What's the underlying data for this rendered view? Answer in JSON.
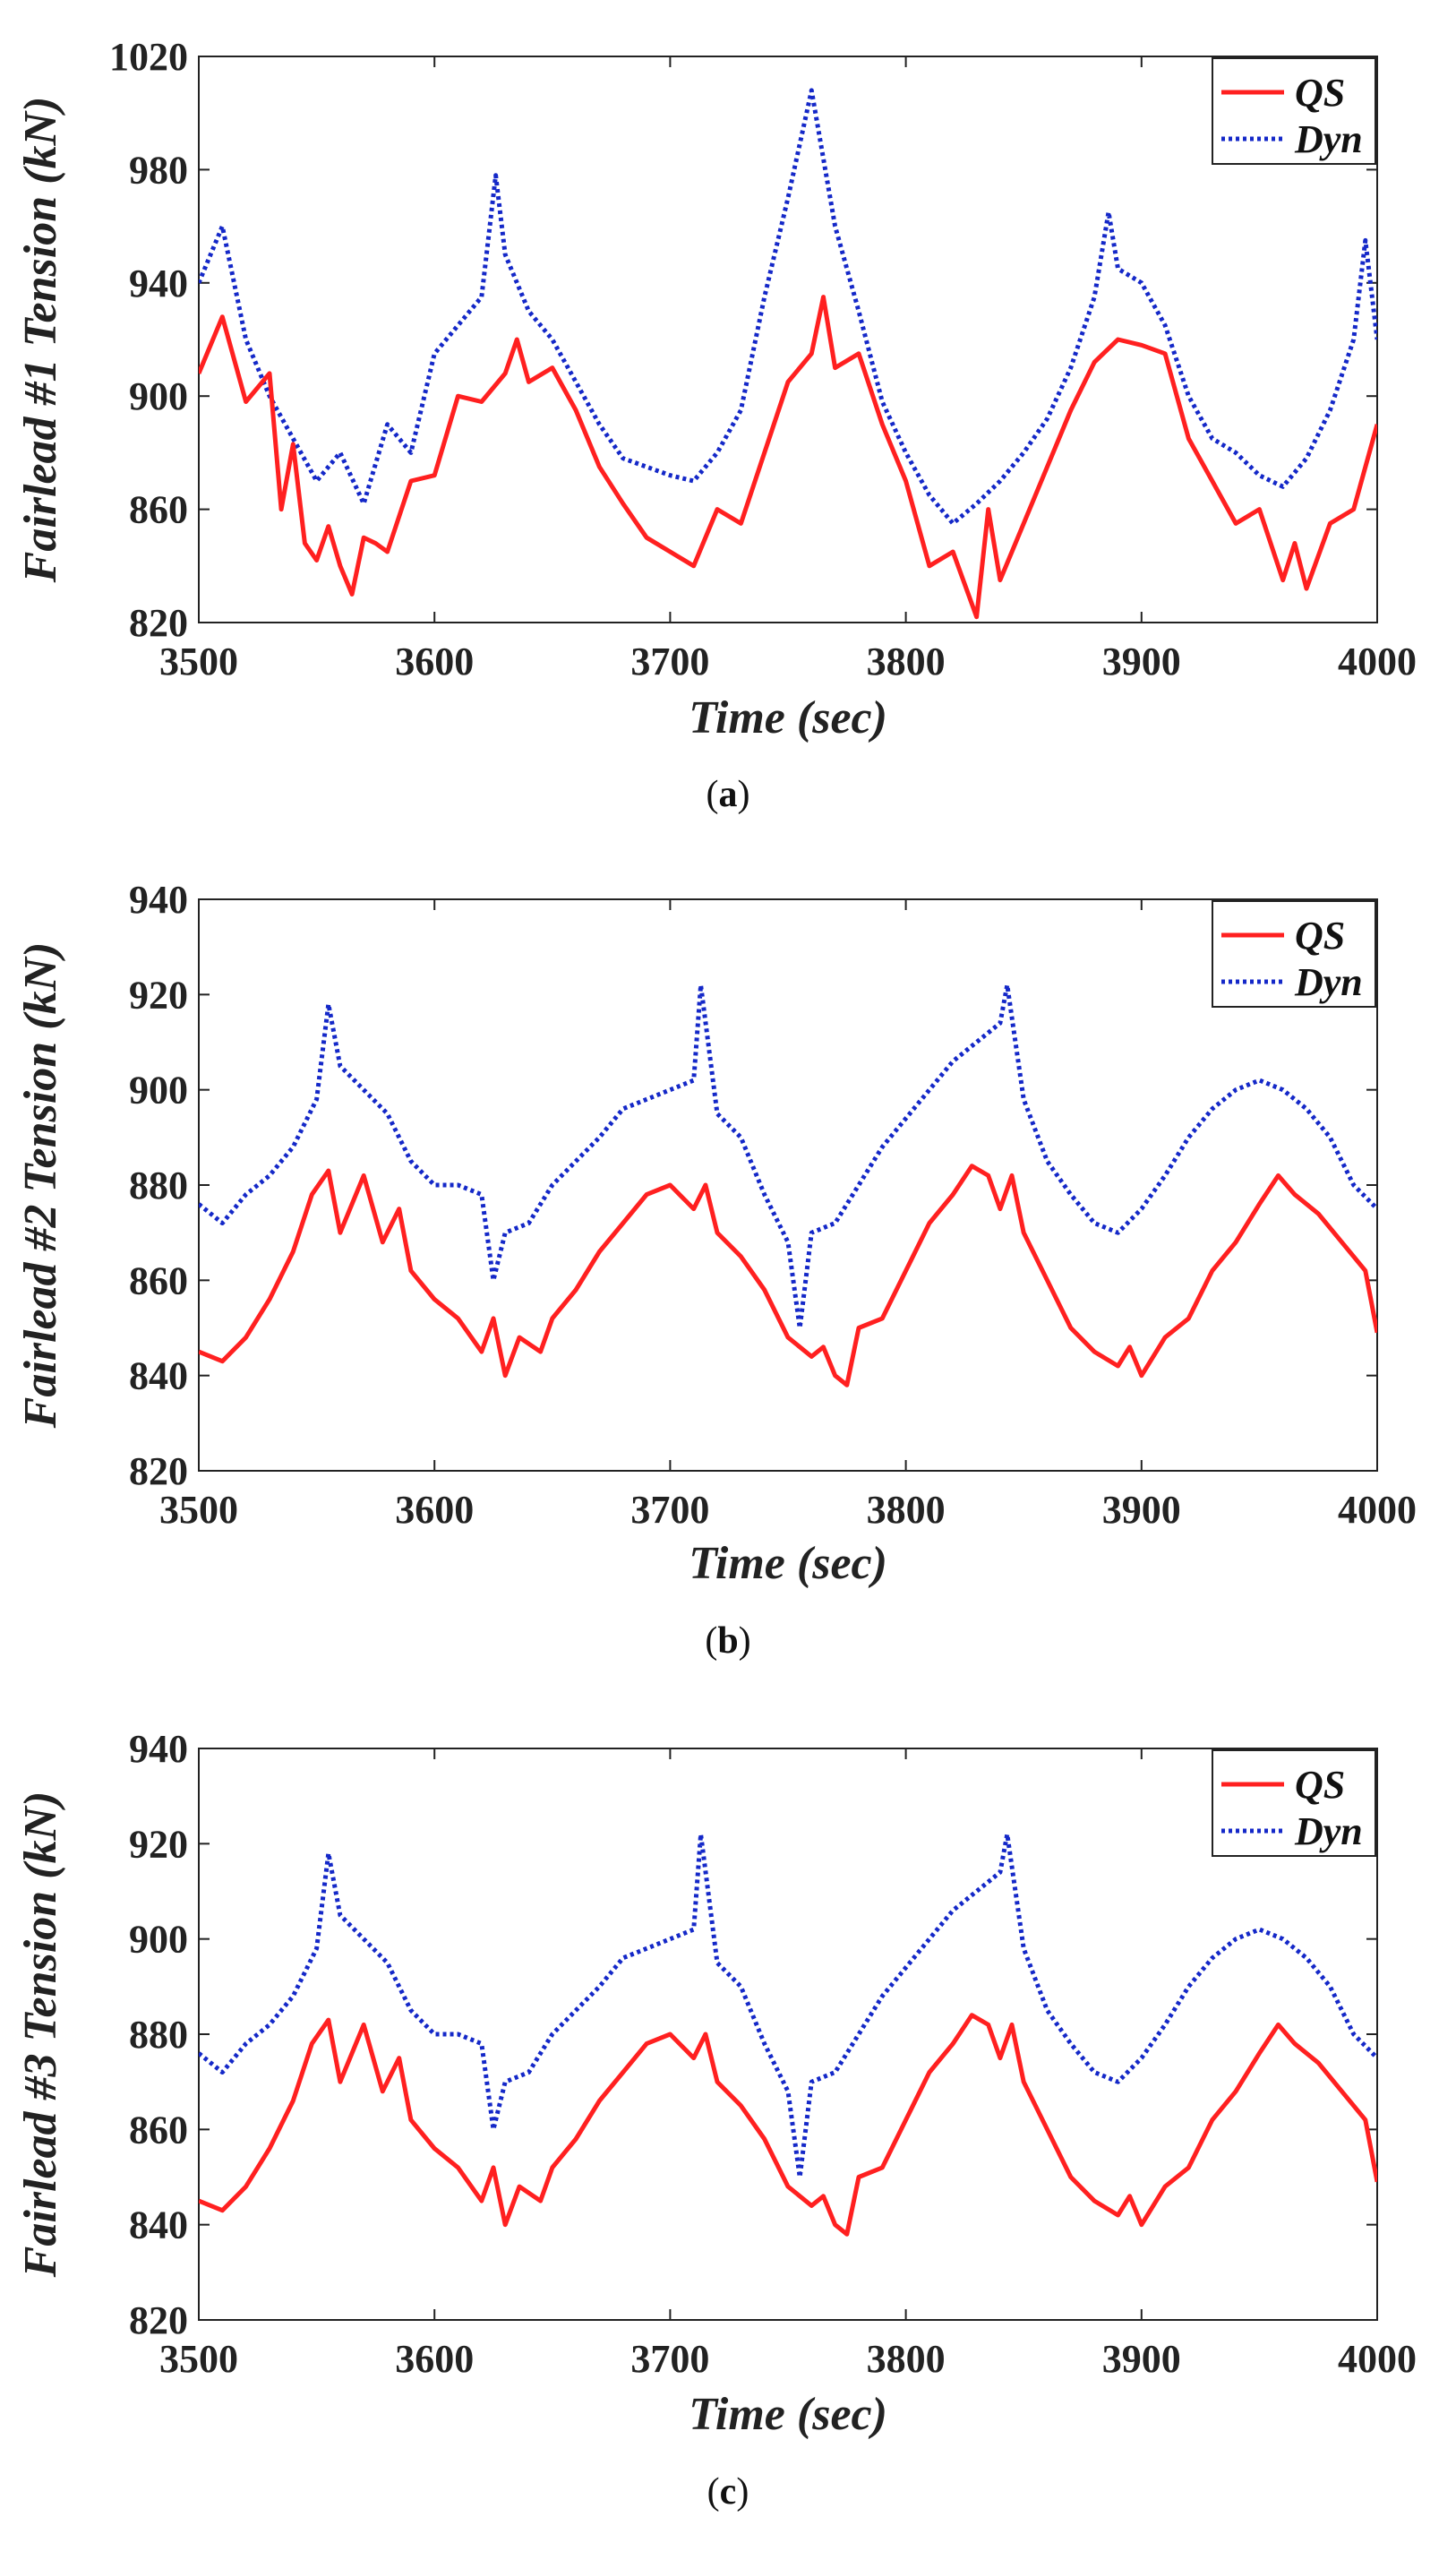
{
  "chart_data": [
    {
      "type": "line",
      "caption_letter": "a",
      "xlabel": "Time (sec)",
      "ylabel": "Fairlead #1 Tension (kN)",
      "xlim": [
        3500,
        4000
      ],
      "ylim": [
        820,
        1020
      ],
      "xticks": [
        3500,
        3600,
        3700,
        3800,
        3900,
        4000
      ],
      "yticks": [
        820,
        860,
        900,
        940,
        980,
        1020
      ],
      "legend_position": "top-right",
      "series": [
        {
          "name": "QS",
          "color": "#ff2020",
          "style": "solid",
          "x": [
            3500,
            3510,
            3520,
            3530,
            3535,
            3540,
            3545,
            3550,
            3555,
            3560,
            3565,
            3570,
            3575,
            3580,
            3590,
            3600,
            3610,
            3620,
            3630,
            3635,
            3640,
            3650,
            3660,
            3670,
            3680,
            3690,
            3700,
            3710,
            3720,
            3730,
            3740,
            3750,
            3760,
            3765,
            3770,
            3780,
            3790,
            3800,
            3810,
            3820,
            3830,
            3835,
            3840,
            3850,
            3860,
            3870,
            3880,
            3890,
            3900,
            3910,
            3920,
            3930,
            3940,
            3950,
            3960,
            3965,
            3970,
            3980,
            3990,
            4000
          ],
          "y": [
            908,
            928,
            898,
            908,
            860,
            883,
            848,
            842,
            854,
            840,
            830,
            850,
            848,
            845,
            870,
            872,
            900,
            898,
            908,
            920,
            905,
            910,
            895,
            875,
            862,
            850,
            845,
            840,
            860,
            855,
            880,
            905,
            915,
            935,
            910,
            915,
            890,
            870,
            840,
            845,
            822,
            860,
            835,
            855,
            875,
            895,
            912,
            920,
            918,
            915,
            885,
            870,
            855,
            860,
            835,
            848,
            832,
            855,
            860,
            890
          ]
        },
        {
          "name": "Dyn",
          "color": "#1428c8",
          "style": "dotted",
          "x": [
            3500,
            3510,
            3520,
            3530,
            3540,
            3550,
            3560,
            3570,
            3580,
            3590,
            3600,
            3610,
            3620,
            3626,
            3630,
            3640,
            3650,
            3660,
            3670,
            3680,
            3690,
            3700,
            3710,
            3720,
            3730,
            3740,
            3750,
            3760,
            3770,
            3780,
            3790,
            3800,
            3810,
            3820,
            3830,
            3840,
            3850,
            3860,
            3870,
            3880,
            3886,
            3890,
            3900,
            3910,
            3920,
            3930,
            3940,
            3950,
            3960,
            3970,
            3980,
            3990,
            3995,
            4000
          ],
          "y": [
            940,
            960,
            920,
            900,
            885,
            870,
            880,
            862,
            890,
            880,
            915,
            925,
            935,
            978,
            950,
            930,
            920,
            905,
            890,
            878,
            875,
            872,
            870,
            880,
            895,
            935,
            970,
            1008,
            960,
            930,
            898,
            880,
            865,
            855,
            862,
            870,
            880,
            892,
            910,
            935,
            965,
            945,
            940,
            925,
            900,
            885,
            880,
            872,
            868,
            878,
            895,
            920,
            955,
            920
          ]
        }
      ]
    },
    {
      "type": "line",
      "caption_letter": "b",
      "xlabel": "Time (sec)",
      "ylabel": "Fairlead #2 Tension (kN)",
      "xlim": [
        3500,
        4000
      ],
      "ylim": [
        820,
        940
      ],
      "xticks": [
        3500,
        3600,
        3700,
        3800,
        3900,
        4000
      ],
      "yticks": [
        820,
        840,
        860,
        880,
        900,
        920,
        940
      ],
      "legend_position": "top-right",
      "series": [
        {
          "name": "QS",
          "color": "#ff2020",
          "style": "solid",
          "x": [
            3500,
            3510,
            3520,
            3530,
            3540,
            3548,
            3555,
            3560,
            3570,
            3578,
            3585,
            3590,
            3600,
            3610,
            3620,
            3625,
            3630,
            3636,
            3645,
            3650,
            3660,
            3670,
            3680,
            3690,
            3700,
            3710,
            3715,
            3720,
            3730,
            3740,
            3750,
            3760,
            3765,
            3770,
            3775,
            3780,
            3790,
            3800,
            3810,
            3820,
            3828,
            3835,
            3840,
            3845,
            3850,
            3860,
            3870,
            3880,
            3890,
            3895,
            3900,
            3910,
            3920,
            3930,
            3940,
            3950,
            3958,
            3965,
            3975,
            3985,
            3995,
            4000
          ],
          "y": [
            845,
            843,
            848,
            856,
            866,
            878,
            883,
            870,
            882,
            868,
            875,
            862,
            856,
            852,
            845,
            852,
            840,
            848,
            845,
            852,
            858,
            866,
            872,
            878,
            880,
            875,
            880,
            870,
            865,
            858,
            848,
            844,
            846,
            840,
            838,
            850,
            852,
            862,
            872,
            878,
            884,
            882,
            875,
            882,
            870,
            860,
            850,
            845,
            842,
            846,
            840,
            848,
            852,
            862,
            868,
            876,
            882,
            878,
            874,
            868,
            862,
            849
          ]
        },
        {
          "name": "Dyn",
          "color": "#1428c8",
          "style": "dotted",
          "x": [
            3500,
            3510,
            3520,
            3530,
            3540,
            3550,
            3555,
            3560,
            3570,
            3580,
            3590,
            3600,
            3610,
            3620,
            3625,
            3630,
            3640,
            3650,
            3660,
            3670,
            3680,
            3690,
            3700,
            3710,
            3713,
            3720,
            3730,
            3740,
            3750,
            3755,
            3760,
            3770,
            3780,
            3790,
            3800,
            3810,
            3820,
            3830,
            3840,
            3843,
            3850,
            3860,
            3870,
            3880,
            3890,
            3900,
            3910,
            3920,
            3930,
            3940,
            3950,
            3960,
            3970,
            3980,
            3990,
            4000
          ],
          "y": [
            876,
            872,
            878,
            882,
            888,
            898,
            918,
            905,
            900,
            895,
            885,
            880,
            880,
            878,
            860,
            870,
            872,
            880,
            885,
            890,
            896,
            898,
            900,
            902,
            922,
            895,
            890,
            878,
            868,
            850,
            870,
            872,
            880,
            888,
            894,
            900,
            906,
            910,
            914,
            922,
            898,
            885,
            878,
            872,
            870,
            875,
            882,
            890,
            896,
            900,
            902,
            900,
            896,
            890,
            880,
            875
          ]
        }
      ]
    },
    {
      "type": "line",
      "caption_letter": "c",
      "xlabel": "Time (sec)",
      "ylabel": "Fairlead #3 Tension (kN)",
      "xlim": [
        3500,
        4000
      ],
      "ylim": [
        820,
        940
      ],
      "xticks": [
        3500,
        3600,
        3700,
        3800,
        3900,
        4000
      ],
      "yticks": [
        820,
        840,
        860,
        880,
        900,
        920,
        940
      ],
      "legend_position": "top-right",
      "series": [
        {
          "name": "QS",
          "color": "#ff2020",
          "style": "solid",
          "x": [
            3500,
            3510,
            3520,
            3530,
            3540,
            3548,
            3555,
            3560,
            3570,
            3578,
            3585,
            3590,
            3600,
            3610,
            3620,
            3625,
            3630,
            3636,
            3645,
            3650,
            3660,
            3670,
            3680,
            3690,
            3700,
            3710,
            3715,
            3720,
            3730,
            3740,
            3750,
            3760,
            3765,
            3770,
            3775,
            3780,
            3790,
            3800,
            3810,
            3820,
            3828,
            3835,
            3840,
            3845,
            3850,
            3860,
            3870,
            3880,
            3890,
            3895,
            3900,
            3910,
            3920,
            3930,
            3940,
            3950,
            3958,
            3965,
            3975,
            3985,
            3995,
            4000
          ],
          "y": [
            845,
            843,
            848,
            856,
            866,
            878,
            883,
            870,
            882,
            868,
            875,
            862,
            856,
            852,
            845,
            852,
            840,
            848,
            845,
            852,
            858,
            866,
            872,
            878,
            880,
            875,
            880,
            870,
            865,
            858,
            848,
            844,
            846,
            840,
            838,
            850,
            852,
            862,
            872,
            878,
            884,
            882,
            875,
            882,
            870,
            860,
            850,
            845,
            842,
            846,
            840,
            848,
            852,
            862,
            868,
            876,
            882,
            878,
            874,
            868,
            862,
            849
          ]
        },
        {
          "name": "Dyn",
          "color": "#1428c8",
          "style": "dotted",
          "x": [
            3500,
            3510,
            3520,
            3530,
            3540,
            3550,
            3555,
            3560,
            3570,
            3580,
            3590,
            3600,
            3610,
            3620,
            3625,
            3630,
            3640,
            3650,
            3660,
            3670,
            3680,
            3690,
            3700,
            3710,
            3713,
            3720,
            3730,
            3740,
            3750,
            3755,
            3760,
            3770,
            3780,
            3790,
            3800,
            3810,
            3820,
            3830,
            3840,
            3843,
            3850,
            3860,
            3870,
            3880,
            3890,
            3900,
            3910,
            3920,
            3930,
            3940,
            3950,
            3960,
            3970,
            3980,
            3990,
            4000
          ],
          "y": [
            876,
            872,
            878,
            882,
            888,
            898,
            918,
            905,
            900,
            895,
            885,
            880,
            880,
            878,
            860,
            870,
            872,
            880,
            885,
            890,
            896,
            898,
            900,
            902,
            922,
            895,
            890,
            878,
            868,
            850,
            870,
            872,
            880,
            888,
            894,
            900,
            906,
            910,
            914,
            922,
            898,
            885,
            878,
            872,
            870,
            875,
            882,
            890,
            896,
            900,
            902,
            900,
            896,
            890,
            880,
            875
          ]
        }
      ]
    }
  ]
}
